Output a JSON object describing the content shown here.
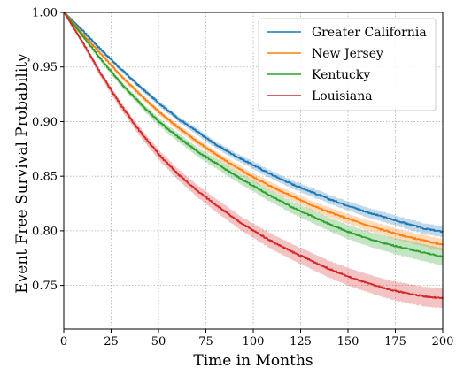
{
  "chart_data": {
    "type": "line",
    "title": "",
    "xlabel": "Time in Months",
    "ylabel": "Event Free Survival Probability",
    "xlim": [
      0,
      200
    ],
    "ylim": [
      0.71,
      1.0
    ],
    "xticks": [
      0,
      25,
      50,
      75,
      100,
      125,
      150,
      175,
      200
    ],
    "yticks": [
      0.75,
      0.8,
      0.85,
      0.9,
      0.95,
      1.0
    ],
    "xtick_labels": [
      "0",
      "25",
      "50",
      "75",
      "100",
      "125",
      "150",
      "175",
      "200"
    ],
    "ytick_labels": [
      "0.75",
      "0.80",
      "0.85",
      "0.90",
      "0.95",
      "1.00"
    ],
    "grid": true,
    "legend_position": "top-right",
    "x": [
      0,
      10,
      20,
      30,
      40,
      50,
      60,
      70,
      80,
      90,
      100,
      110,
      120,
      130,
      140,
      150,
      160,
      170,
      180,
      190,
      200
    ],
    "series": [
      {
        "name": "Greater California",
        "color": "#1f77b4",
        "values": [
          1.0,
          0.983,
          0.965,
          0.948,
          0.932,
          0.917,
          0.903,
          0.891,
          0.879,
          0.869,
          0.86,
          0.851,
          0.843,
          0.836,
          0.829,
          0.823,
          0.817,
          0.812,
          0.807,
          0.802,
          0.799
        ],
        "ci_halfwidth": [
          0.0,
          0.001,
          0.0015,
          0.002,
          0.002,
          0.0025,
          0.0025,
          0.003,
          0.003,
          0.0032,
          0.0035,
          0.0035,
          0.0037,
          0.004,
          0.004,
          0.0042,
          0.0045,
          0.0045,
          0.0047,
          0.005,
          0.005
        ]
      },
      {
        "name": "New Jersey",
        "color": "#ff7f0e",
        "values": [
          1.0,
          0.98,
          0.961,
          0.942,
          0.925,
          0.909,
          0.895,
          0.882,
          0.87,
          0.859,
          0.849,
          0.84,
          0.832,
          0.824,
          0.817,
          0.811,
          0.805,
          0.8,
          0.795,
          0.791,
          0.787
        ],
        "ci_halfwidth": [
          0.0,
          0.001,
          0.0015,
          0.002,
          0.0025,
          0.0025,
          0.003,
          0.003,
          0.0032,
          0.0035,
          0.0037,
          0.004,
          0.004,
          0.0042,
          0.0045,
          0.0045,
          0.0047,
          0.005,
          0.005,
          0.0052,
          0.0055
        ]
      },
      {
        "name": "Kentucky",
        "color": "#2ca02c",
        "values": [
          1.0,
          0.978,
          0.956,
          0.935,
          0.917,
          0.9,
          0.886,
          0.873,
          0.862,
          0.851,
          0.841,
          0.831,
          0.822,
          0.814,
          0.806,
          0.799,
          0.793,
          0.788,
          0.784,
          0.78,
          0.776
        ],
        "ci_halfwidth": [
          0.0,
          0.0015,
          0.002,
          0.0025,
          0.003,
          0.0035,
          0.004,
          0.0042,
          0.0045,
          0.0048,
          0.005,
          0.0052,
          0.0055,
          0.006,
          0.0062,
          0.0065,
          0.0068,
          0.007,
          0.0075,
          0.0078,
          0.008
        ]
      },
      {
        "name": "Louisiana",
        "color": "#d62728",
        "values": [
          1.0,
          0.972,
          0.942,
          0.915,
          0.891,
          0.87,
          0.852,
          0.837,
          0.824,
          0.811,
          0.8,
          0.79,
          0.781,
          0.773,
          0.765,
          0.758,
          0.752,
          0.747,
          0.743,
          0.74,
          0.738
        ],
        "ci_halfwidth": [
          0.0,
          0.002,
          0.003,
          0.0035,
          0.004,
          0.0045,
          0.005,
          0.0055,
          0.006,
          0.0062,
          0.0065,
          0.007,
          0.0072,
          0.0075,
          0.0078,
          0.008,
          0.0082,
          0.0085,
          0.0088,
          0.009,
          0.009
        ]
      }
    ]
  }
}
